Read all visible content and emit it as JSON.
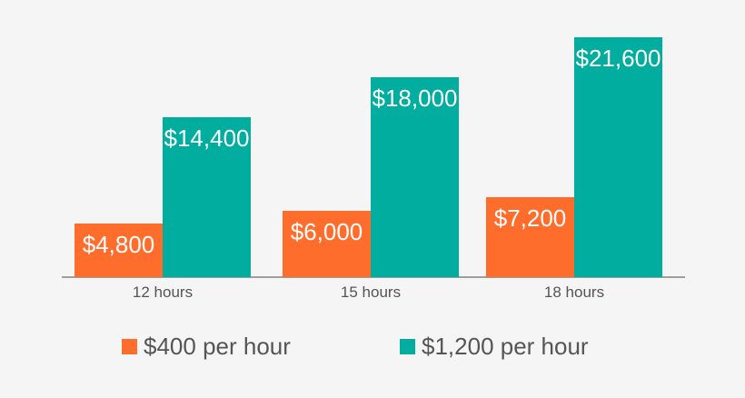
{
  "chart_data": {
    "type": "bar",
    "title": "",
    "xlabel": "",
    "ylabel": "",
    "categories": [
      "12 hours",
      "15 hours",
      "18 hours"
    ],
    "series": [
      {
        "name": "$400 per hour",
        "color": "#ff6d2d",
        "values": [
          4800,
          6000,
          7200
        ],
        "labels": [
          "$4,800",
          "$6,000",
          "$7,200"
        ]
      },
      {
        "name": "$1,200 per hour",
        "color": "#00ad9f",
        "values": [
          14400,
          18000,
          21600
        ],
        "labels": [
          "$14,400",
          "$18,000",
          "$21,600"
        ]
      }
    ],
    "ylim": [
      0,
      21600
    ],
    "grid": false,
    "legend_position": "bottom"
  }
}
